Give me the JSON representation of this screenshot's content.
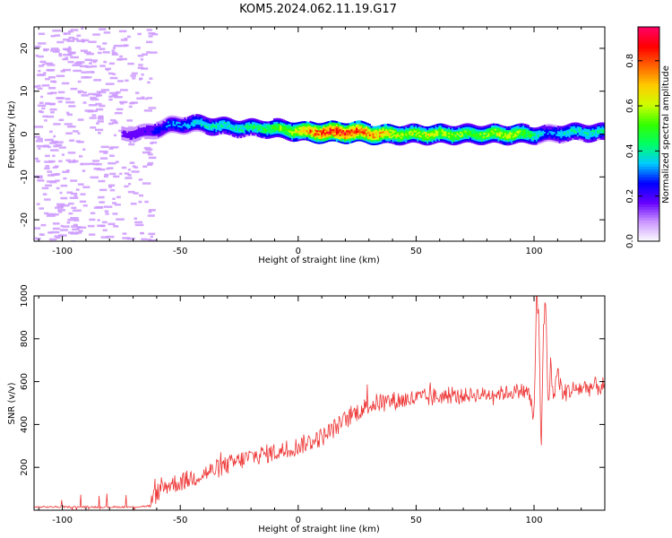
{
  "figure": {
    "title": "KOM5.2024.062.11.19.G17"
  },
  "colorbar": {
    "label": "Normalized spectral amplitude",
    "ticks": [
      "0.0",
      "0.2",
      "0.4",
      "0.6",
      "0.8"
    ],
    "tick_values": [
      0.0,
      0.2,
      0.4,
      0.6,
      0.8
    ],
    "range": [
      0,
      0.95
    ],
    "colors": [
      "#ffffff",
      "#cc99ff",
      "#6600ff",
      "#0000ff",
      "#00ccff",
      "#00ff66",
      "#33ff00",
      "#ccff00",
      "#ffcc00",
      "#ff6600",
      "#ff0000",
      "#ff0066"
    ]
  },
  "chart_data": [
    {
      "type": "heatmap",
      "title": "",
      "xlabel": "Height of straight line (km)",
      "ylabel": "Frequency (Hz)",
      "xlim": [
        -112,
        130
      ],
      "ylim": [
        -25,
        25
      ],
      "xticks": [
        -100,
        -50,
        0,
        50,
        100
      ],
      "yticks": [
        -20,
        -10,
        0,
        10,
        20
      ],
      "ridge": {
        "x": [
          -75,
          -65,
          -55,
          -45,
          -35,
          -25,
          -15,
          -5,
          5,
          15,
          25,
          35,
          45,
          55,
          65,
          75,
          85,
          95,
          105,
          115,
          125,
          130
        ],
        "frequency_hz": [
          0.0,
          0.5,
          2.0,
          2.5,
          2.0,
          1.5,
          1.5,
          1.0,
          0.5,
          0.5,
          0.5,
          0.0,
          0.0,
          0.0,
          0.0,
          0.0,
          0.0,
          0.0,
          0.0,
          0.5,
          0.5,
          0.5
        ],
        "amplitude": [
          0.15,
          0.2,
          0.3,
          0.35,
          0.4,
          0.4,
          0.45,
          0.55,
          0.75,
          0.85,
          0.8,
          0.7,
          0.55,
          0.6,
          0.55,
          0.5,
          0.6,
          0.55,
          0.3,
          0.4,
          0.4,
          0.4
        ]
      },
      "noise_region": {
        "x_range": [
          -112,
          -62
        ],
        "amplitude": 0.08
      }
    },
    {
      "type": "line",
      "title": "",
      "xlabel": "Height of straight line (km)",
      "ylabel": "SNR (v/v)",
      "xlim": [
        -112,
        130
      ],
      "ylim": [
        0,
        1000
      ],
      "xticks": [
        -100,
        -50,
        0,
        50,
        100
      ],
      "yticks": [
        200,
        400,
        600,
        800,
        1000
      ],
      "color": "#ee3333",
      "series": [
        {
          "x": [
            -112,
            -100,
            -90,
            -80,
            -70,
            -63,
            -60,
            -55,
            -50,
            -45,
            -40,
            -35,
            -30,
            -25,
            -20,
            -15,
            -10,
            -5,
            0,
            5,
            10,
            15,
            20,
            25,
            30,
            35,
            40,
            45,
            50,
            55,
            60,
            65,
            70,
            75,
            80,
            85,
            90,
            95,
            98,
            100,
            101,
            102,
            103,
            104,
            105,
            106,
            107,
            108,
            110,
            112,
            115,
            120,
            125,
            130
          ],
          "values": [
            15,
            15,
            15,
            15,
            15,
            20,
            80,
            120,
            130,
            150,
            170,
            190,
            210,
            230,
            250,
            260,
            270,
            280,
            300,
            320,
            340,
            380,
            420,
            460,
            490,
            505,
            510,
            515,
            520,
            525,
            530,
            530,
            535,
            540,
            540,
            545,
            550,
            560,
            540,
            420,
            1000,
            900,
            250,
            850,
            1000,
            450,
            700,
            520,
            650,
            540,
            560,
            570,
            575,
            580
          ]
        }
      ]
    }
  ]
}
